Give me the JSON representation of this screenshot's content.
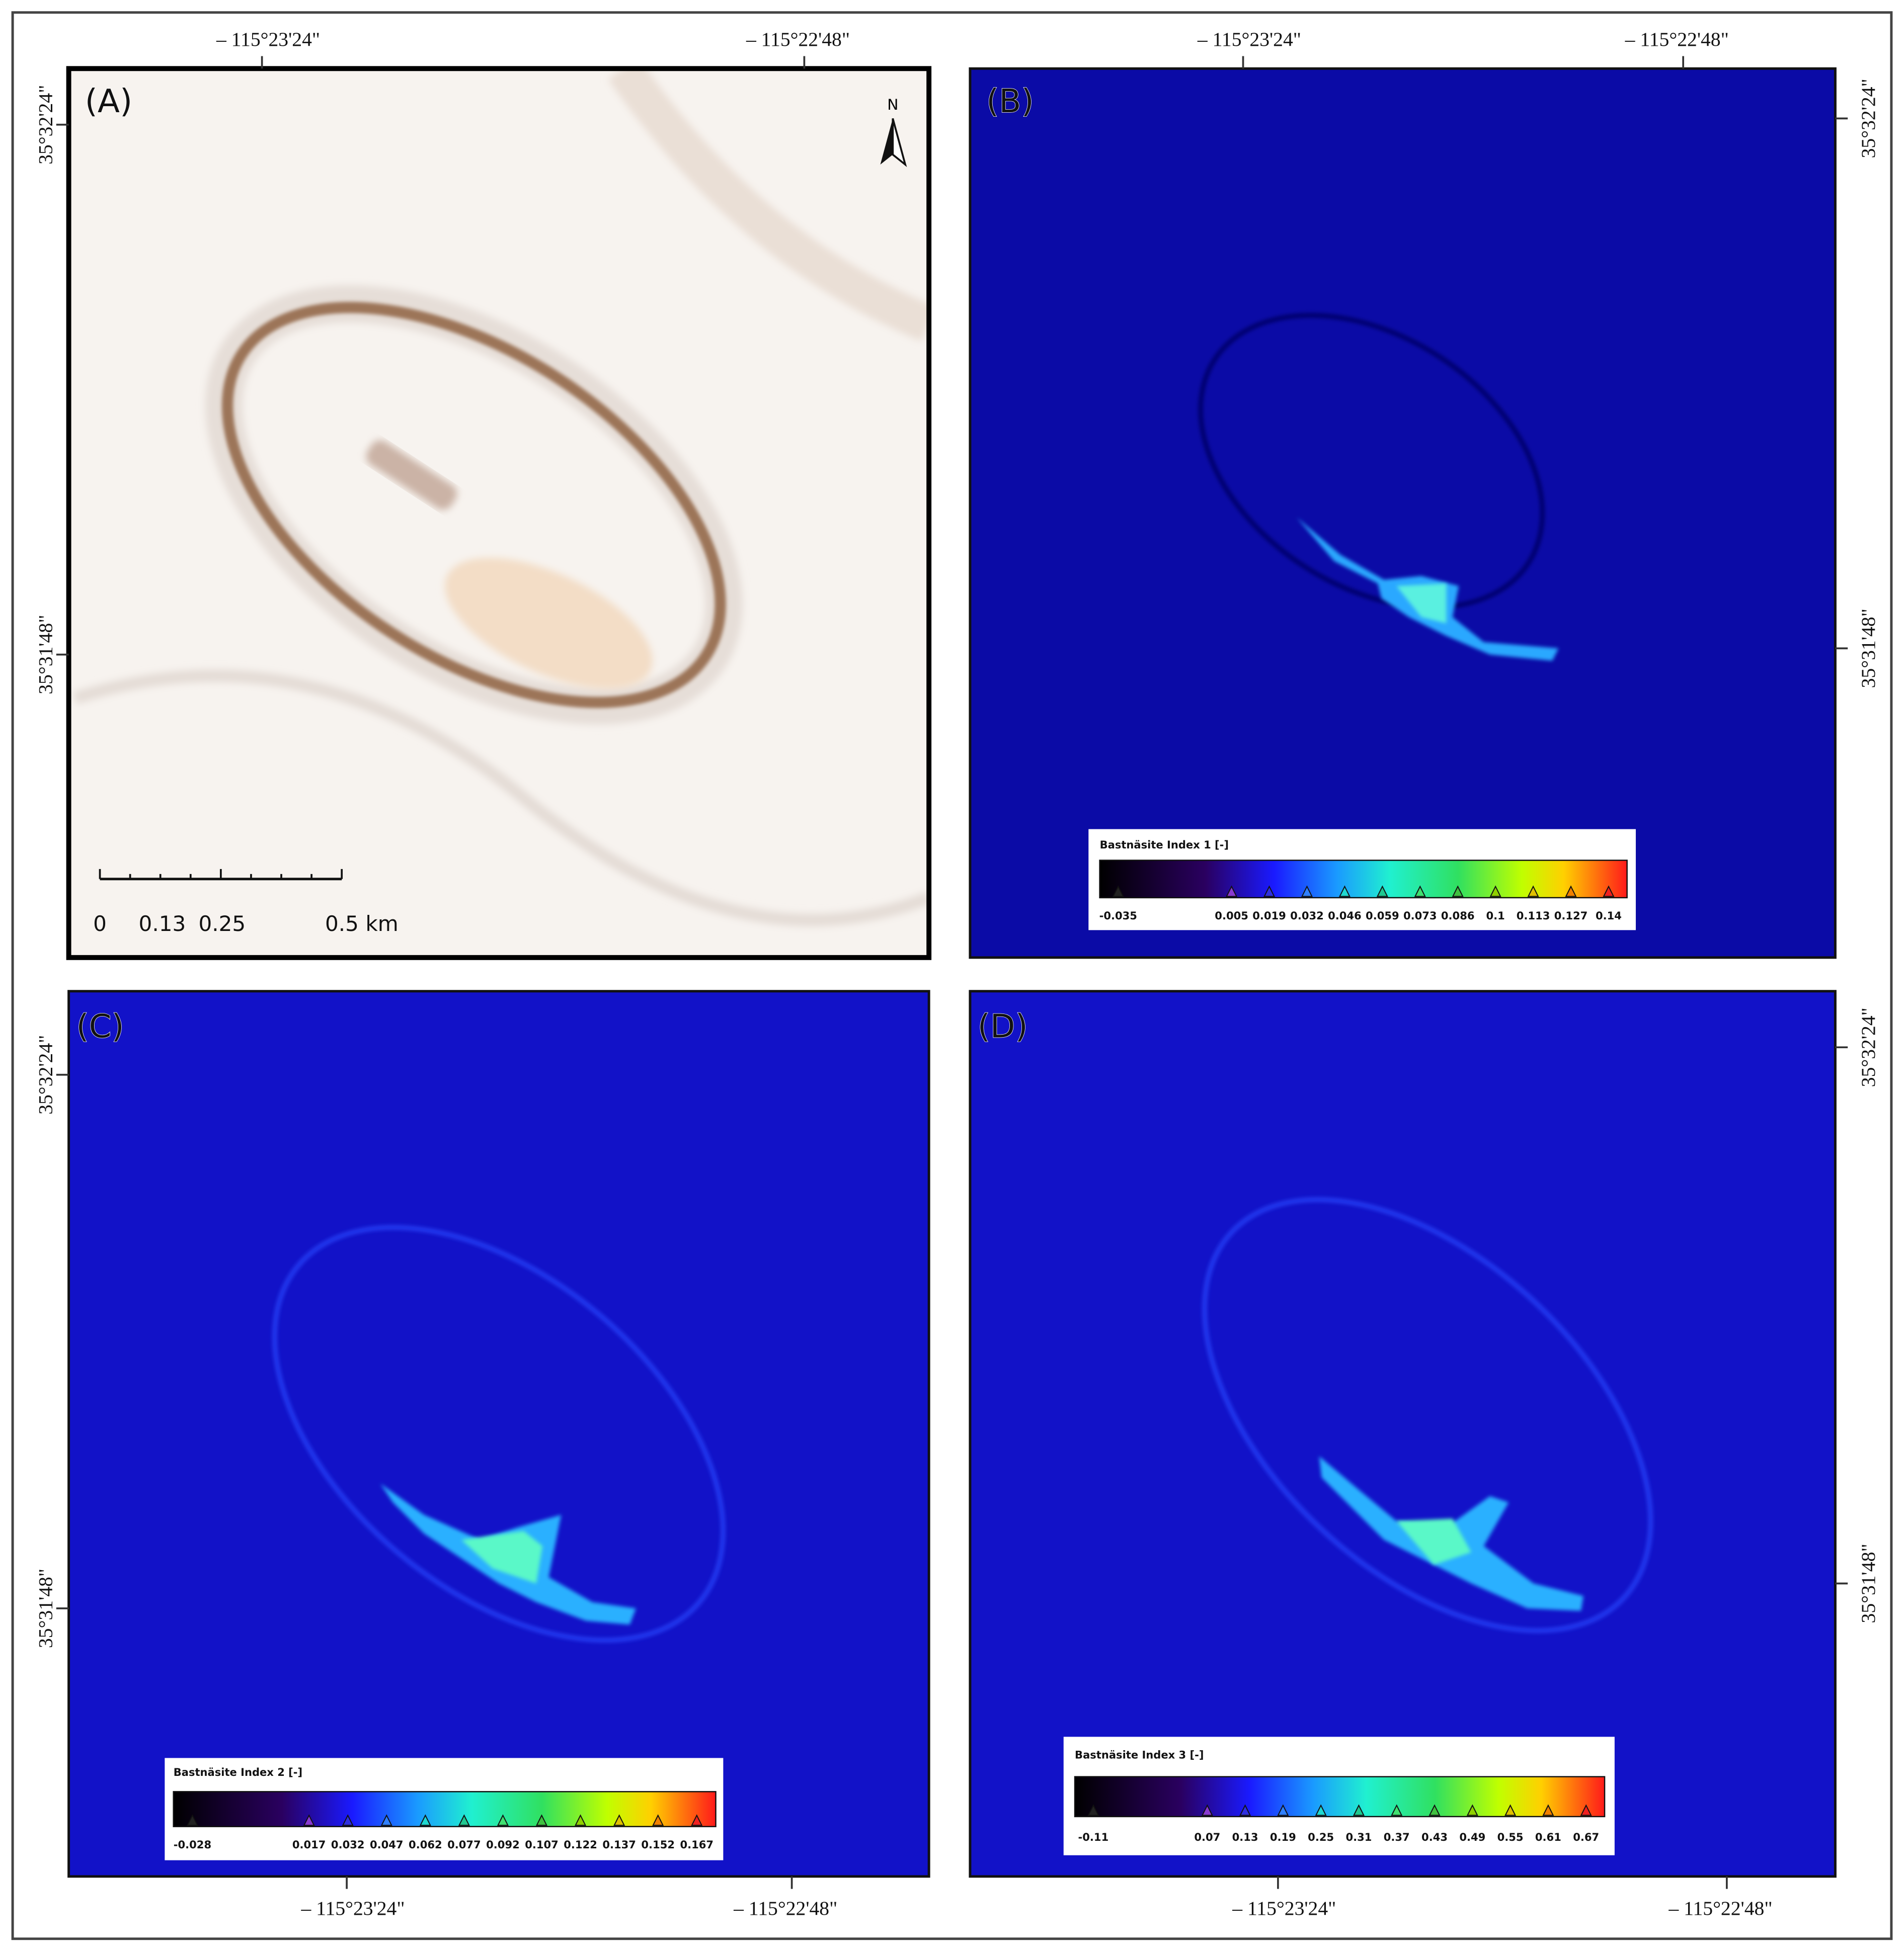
{
  "panels": [
    {
      "label": "(A)",
      "lon_labels": [
        "– 115°23'24\"",
        "– 115°22'48\""
      ],
      "lat_labels": [
        "35°32'24\"",
        "35°31'48\""
      ],
      "north": "N",
      "scale_bar": [
        "0",
        "0.13",
        "0.25",
        "0.5 km"
      ]
    },
    {
      "label": "(B)",
      "lon_labels": [
        "– 115°23'24\"",
        "– 115°22'48\""
      ],
      "lat_labels": [
        "35°32'24\"",
        "35°31'48\""
      ],
      "legend": {
        "title": "Bastnäsite Index 1 [-]",
        "ticks": [
          "-0.035",
          "0.005",
          "0.019",
          "0.032",
          "0.046",
          "0.059",
          "0.073",
          "0.086",
          "0.1",
          "0.113",
          "0.127",
          "0.14"
        ]
      }
    },
    {
      "label": "(C)",
      "lon_labels": [
        "– 115°23'24\"",
        "– 115°22'48\""
      ],
      "lat_labels": [
        "35°32'24\"",
        "35°31'48\""
      ],
      "legend": {
        "title": "Bastnäsite Index 2 [-]",
        "ticks": [
          "-0.028",
          "0.017",
          "0.032",
          "0.047",
          "0.062",
          "0.077",
          "0.092",
          "0.107",
          "0.122",
          "0.137",
          "0.152",
          "0.167"
        ]
      }
    },
    {
      "label": "(D)",
      "lon_labels": [
        "– 115°23'24\"",
        "– 115°22'48\""
      ],
      "lat_labels": [
        "35°32'24\"",
        "35°31'48\""
      ],
      "legend": {
        "title": "Bastnäsite Index 3 [-]",
        "ticks": [
          "-0.11",
          "0.07",
          "0.13",
          "0.19",
          "0.25",
          "0.31",
          "0.37",
          "0.43",
          "0.49",
          "0.55",
          "0.61",
          "0.67"
        ]
      }
    }
  ]
}
